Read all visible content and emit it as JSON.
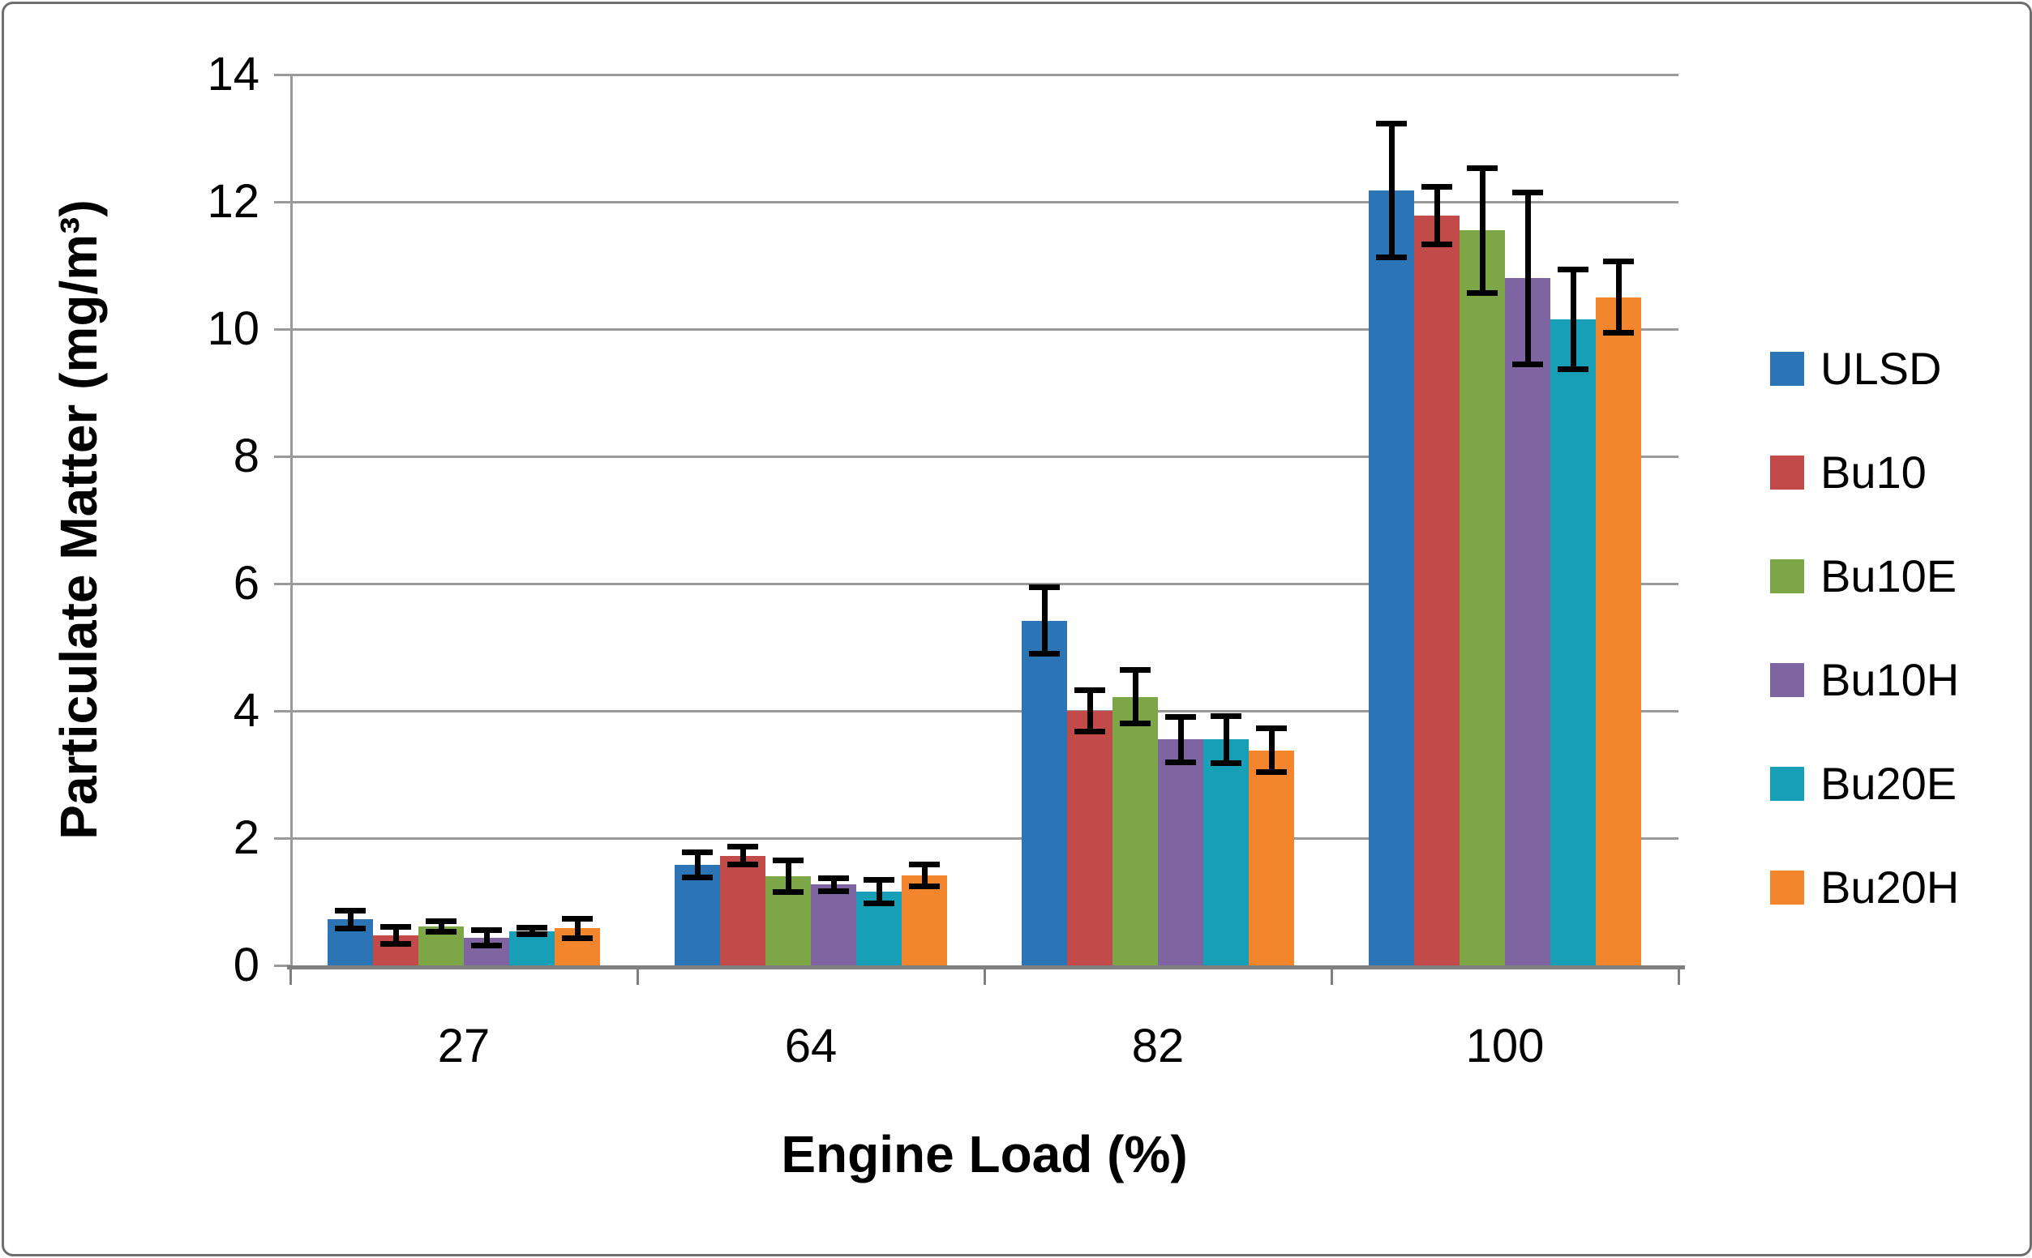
{
  "figure": {
    "background": "#ffffff",
    "border_color": "#6e6e6e"
  },
  "chart_data": {
    "type": "bar",
    "title": "",
    "xlabel": "Engine Load (%)",
    "ylabel": "Particulate Matter (mg/m³)",
    "categories": [
      "27",
      "64",
      "82",
      "100"
    ],
    "y_ticks": [
      0,
      2,
      4,
      6,
      8,
      10,
      12,
      14
    ],
    "ylim": [
      0,
      14
    ],
    "grid": "horizontal",
    "legend_position": "right",
    "gridline_color": "#9a9a9a",
    "axis_color": "#7f7f7f",
    "error_bar_color": "#000000",
    "text_color": "#000000",
    "series": [
      {
        "name": "ULSD",
        "color": "#2b74b5",
        "values": [
          0.72,
          1.58,
          5.42,
          12.18
        ],
        "errors": [
          0.14,
          0.2,
          0.52,
          1.05
        ]
      },
      {
        "name": "Bu10",
        "color": "#c24b49",
        "values": [
          0.47,
          1.72,
          4.0,
          11.78
        ],
        "errors": [
          0.13,
          0.14,
          0.33,
          0.45
        ]
      },
      {
        "name": "Bu10E",
        "color": "#7da647",
        "values": [
          0.61,
          1.4,
          4.22,
          11.55
        ],
        "errors": [
          0.08,
          0.25,
          0.42,
          0.98
        ]
      },
      {
        "name": "Bu10H",
        "color": "#7e64a0",
        "values": [
          0.43,
          1.27,
          3.55,
          10.8
        ],
        "errors": [
          0.12,
          0.1,
          0.36,
          1.35
        ]
      },
      {
        "name": "Bu20E",
        "color": "#169fb6",
        "values": [
          0.54,
          1.16,
          3.55,
          10.15
        ],
        "errors": [
          0.05,
          0.19,
          0.37,
          0.78
        ]
      },
      {
        "name": "Bu20H",
        "color": "#f3862d",
        "values": [
          0.58,
          1.41,
          3.38,
          10.5
        ],
        "errors": [
          0.15,
          0.17,
          0.34,
          0.56
        ]
      }
    ]
  }
}
